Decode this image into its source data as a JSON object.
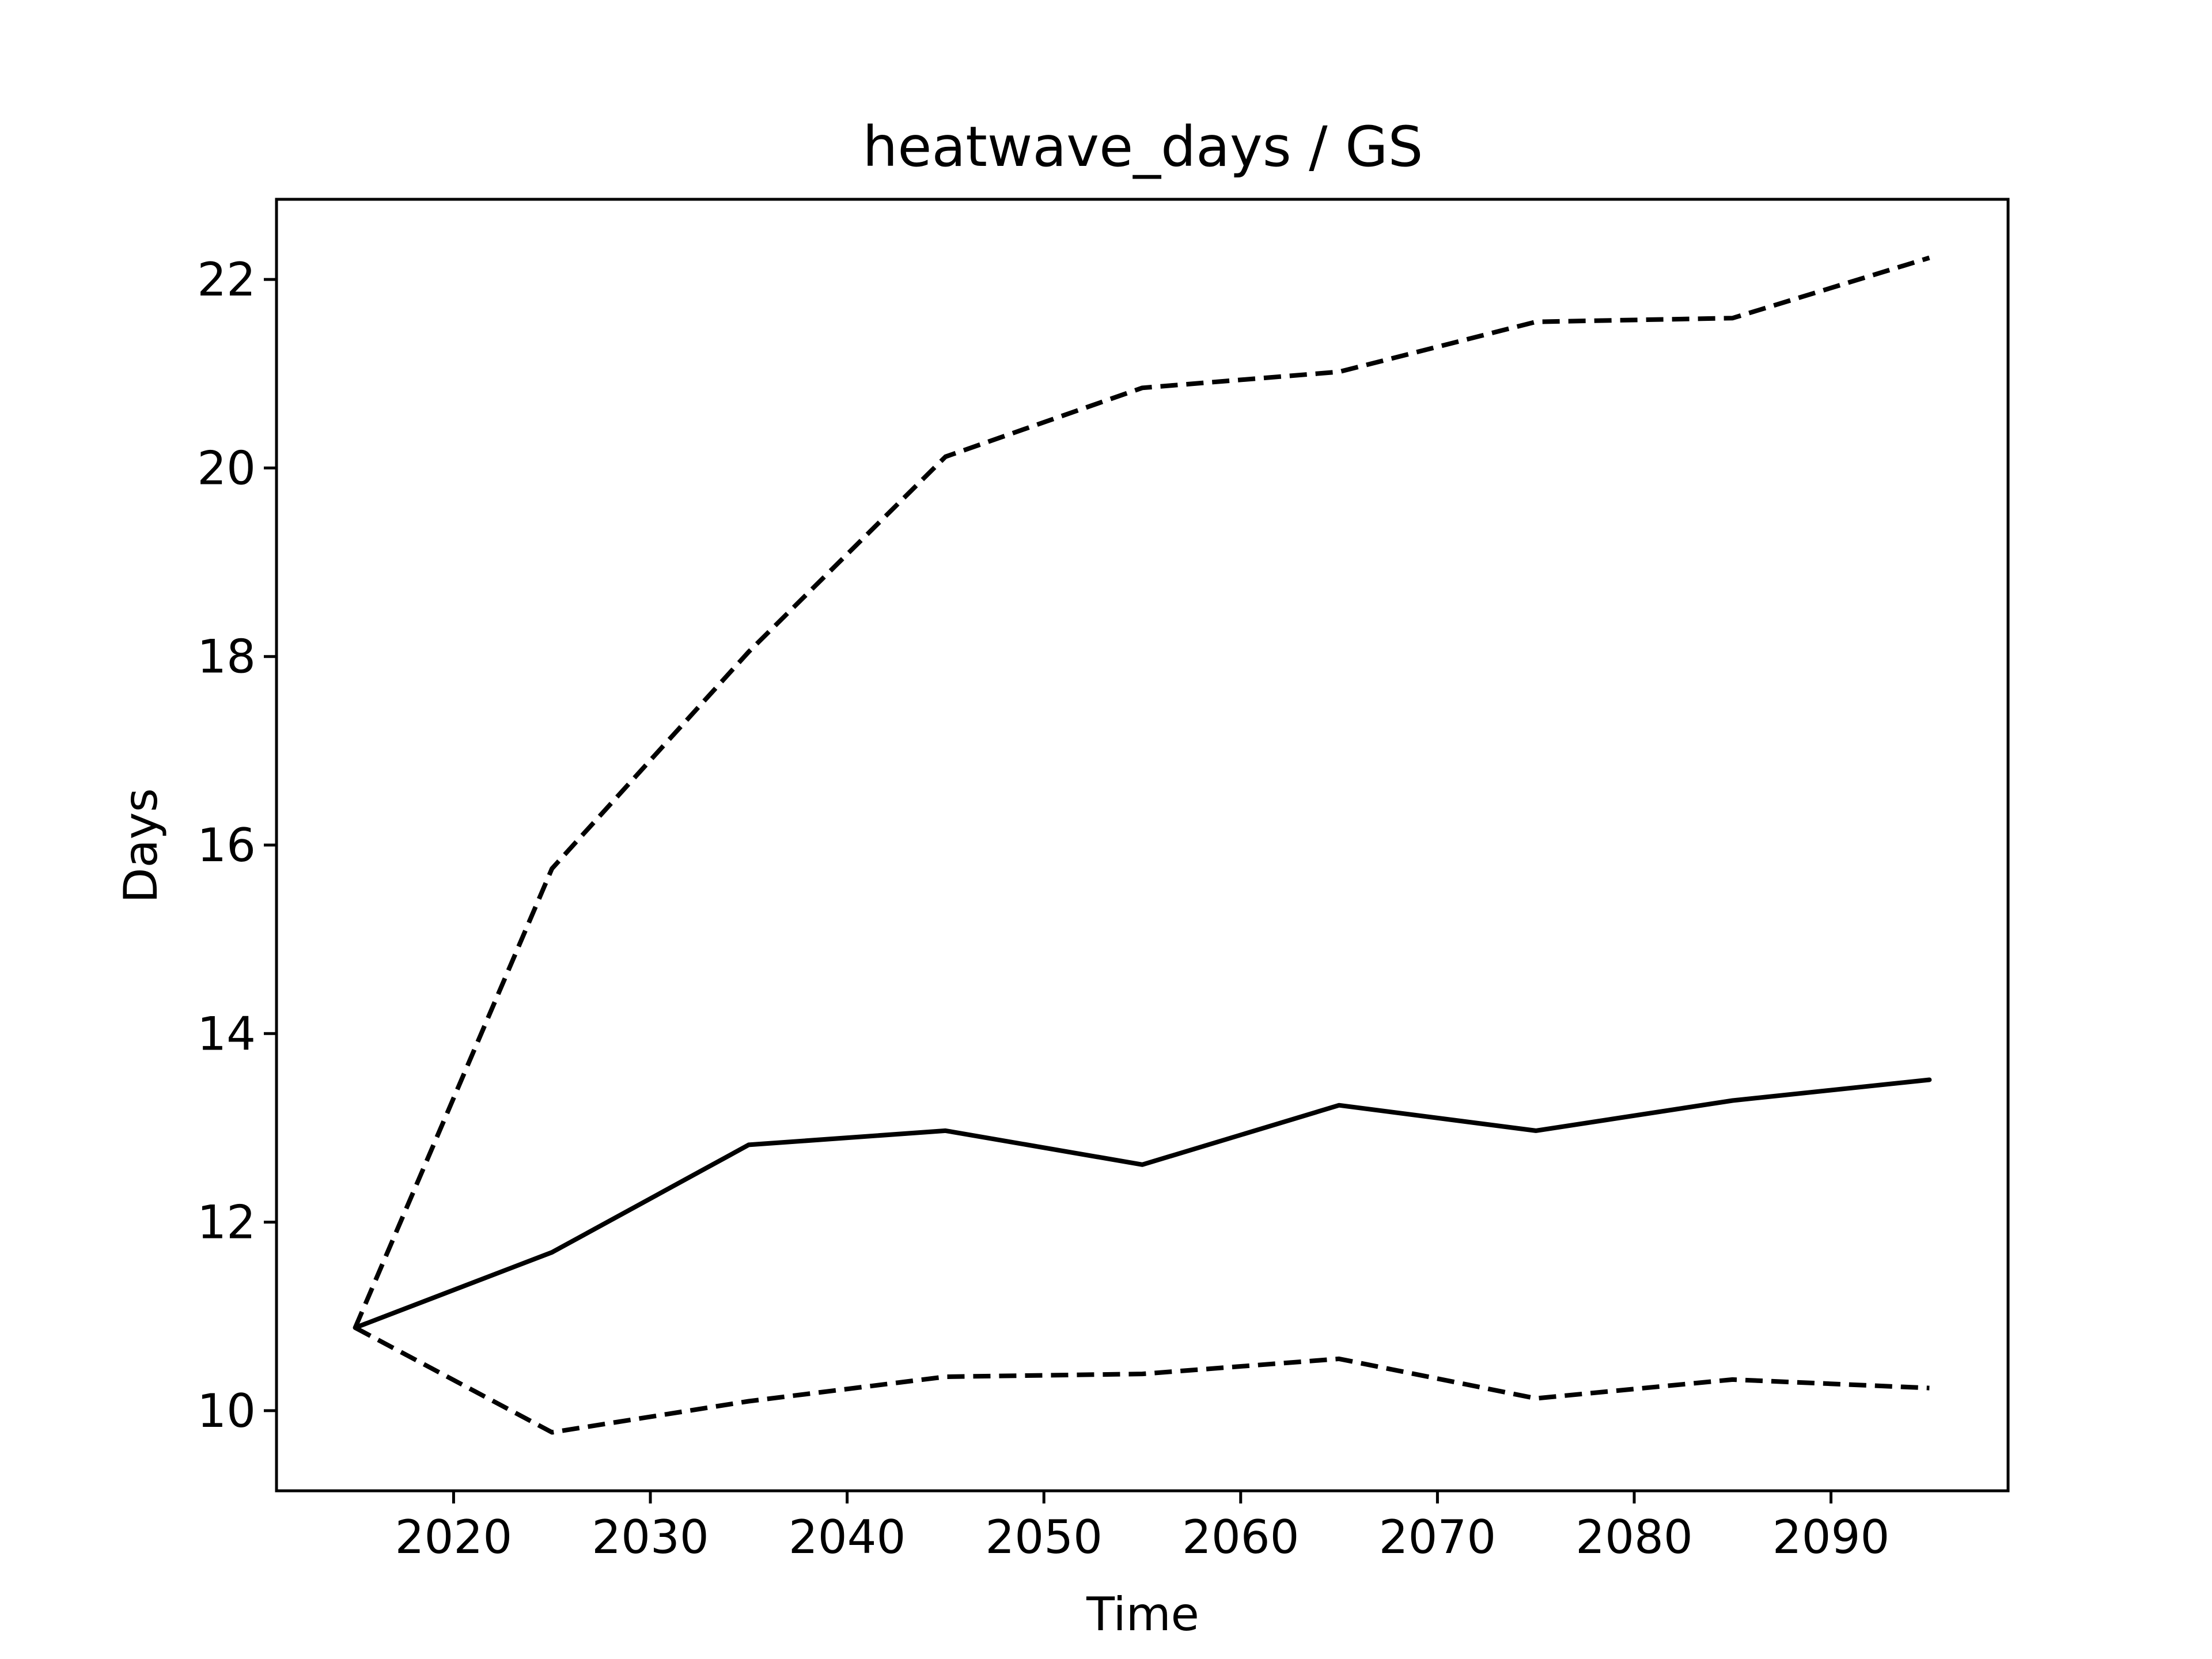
{
  "chart_data": {
    "type": "line",
    "title": "heatwave_days / GS",
    "xlabel": "Time",
    "ylabel": "Days",
    "xlim": [
      2011,
      2099
    ],
    "ylim": [
      9.15,
      22.85
    ],
    "xticks": [
      2020,
      2030,
      2040,
      2050,
      2060,
      2070,
      2080,
      2090
    ],
    "yticks": [
      10,
      12,
      14,
      16,
      18,
      20,
      22
    ],
    "grid": false,
    "x": [
      2015,
      2025,
      2035,
      2045,
      2055,
      2065,
      2075,
      2085,
      2095
    ],
    "series": [
      {
        "style": "solid",
        "values": [
          10.88,
          11.68,
          12.82,
          12.97,
          12.61,
          13.24,
          12.97,
          13.29,
          13.51
        ]
      },
      {
        "style": "dashed",
        "values": [
          10.88,
          15.75,
          18.05,
          20.12,
          20.85,
          21.02,
          21.55,
          21.59,
          22.23
        ]
      },
      {
        "style": "dashed",
        "values": [
          10.88,
          9.77,
          10.1,
          10.36,
          10.39,
          10.55,
          10.13,
          10.33,
          10.24
        ]
      }
    ]
  }
}
